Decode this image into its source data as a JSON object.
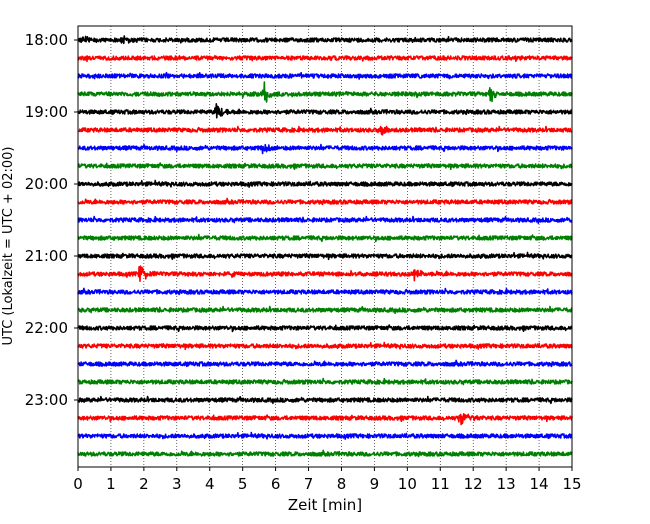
{
  "chart_data": {
    "type": "line",
    "xlabel": "Zeit  [min]",
    "ylabel": "UTC (Lokalzeit = UTC + 02:00)",
    "xlim": [
      0,
      15
    ],
    "x_ticks": [
      0,
      1,
      2,
      3,
      4,
      5,
      6,
      7,
      8,
      9,
      10,
      11,
      12,
      13,
      14,
      15
    ],
    "x_tick_labels": [
      "0",
      "1",
      "2",
      "3",
      "4",
      "5",
      "6",
      "7",
      "8",
      "9",
      "10",
      "11",
      "12",
      "13",
      "14",
      "15"
    ],
    "y_ticks": [
      "18:00",
      "19:00",
      "20:00",
      "21:00",
      "22:00",
      "23:00"
    ],
    "grid": "vertical dotted at each minute",
    "trace_minutes": 15,
    "traces_per_hour": 4,
    "start_time": "18:00",
    "color_cycle": [
      "#000000",
      "#ff0000",
      "#0000ff",
      "#008000"
    ],
    "series": [
      {
        "start": "18:00",
        "events": [
          {
            "t": 0.1,
            "amp": 0.5
          },
          {
            "t": 1.35,
            "amp": 0.45
          }
        ]
      },
      {
        "start": "18:15",
        "events": []
      },
      {
        "start": "18:30",
        "events": []
      },
      {
        "start": "18:45",
        "events": [
          {
            "t": 5.65,
            "amp": 1.1
          },
          {
            "t": 12.5,
            "amp": 0.8
          }
        ]
      },
      {
        "start": "19:00",
        "events": [
          {
            "t": 4.2,
            "amp": 0.9
          }
        ]
      },
      {
        "start": "19:15",
        "events": [
          {
            "t": 9.2,
            "amp": 0.45
          }
        ]
      },
      {
        "start": "19:30",
        "events": [
          {
            "t": 5.6,
            "amp": 0.6
          }
        ]
      },
      {
        "start": "19:45",
        "events": []
      },
      {
        "start": "20:00",
        "events": []
      },
      {
        "start": "20:15",
        "events": []
      },
      {
        "start": "20:30",
        "events": []
      },
      {
        "start": "20:45",
        "events": []
      },
      {
        "start": "21:00",
        "events": []
      },
      {
        "start": "21:15",
        "events": [
          {
            "t": 1.85,
            "amp": 1.0
          },
          {
            "t": 10.2,
            "amp": 0.5
          }
        ]
      },
      {
        "start": "21:30",
        "events": []
      },
      {
        "start": "21:45",
        "events": []
      },
      {
        "start": "22:00",
        "events": []
      },
      {
        "start": "22:15",
        "events": []
      },
      {
        "start": "22:30",
        "events": []
      },
      {
        "start": "22:45",
        "events": []
      },
      {
        "start": "23:00",
        "events": []
      },
      {
        "start": "23:15",
        "events": [
          {
            "t": 11.6,
            "amp": 1.0
          }
        ]
      },
      {
        "start": "23:30",
        "events": []
      },
      {
        "start": "23:45",
        "events": []
      }
    ]
  }
}
